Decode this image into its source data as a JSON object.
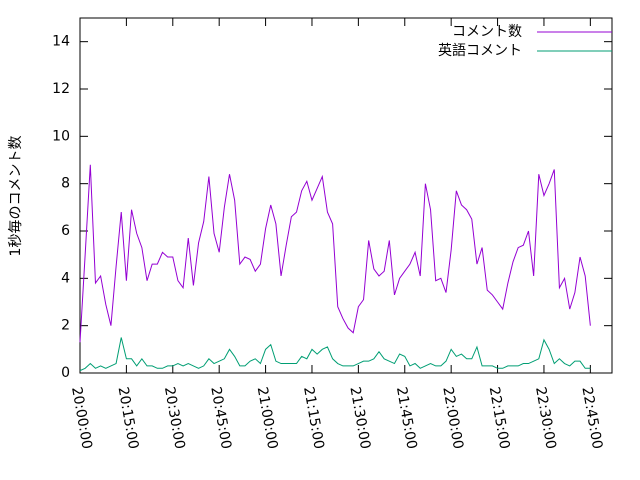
{
  "chart_data": {
    "type": "line",
    "y_label": "1秒毎のコメント数",
    "x": [
      "20:00:00",
      "20:01:40",
      "20:03:20",
      "20:05:00",
      "20:06:40",
      "20:08:20",
      "20:10:00",
      "20:11:40",
      "20:13:20",
      "20:15:00",
      "20:16:40",
      "20:18:20",
      "20:20:00",
      "20:21:40",
      "20:23:20",
      "20:25:00",
      "20:26:40",
      "20:28:20",
      "20:30:00",
      "20:31:40",
      "20:33:20",
      "20:35:00",
      "20:36:40",
      "20:38:20",
      "20:40:00",
      "20:41:40",
      "20:43:20",
      "20:45:00",
      "20:46:40",
      "20:48:20",
      "20:50:00",
      "20:51:40",
      "20:53:20",
      "20:55:00",
      "20:56:40",
      "20:58:20",
      "21:00:00",
      "21:01:40",
      "21:03:20",
      "21:05:00",
      "21:06:40",
      "21:08:20",
      "21:10:00",
      "21:11:40",
      "21:13:20",
      "21:15:00",
      "21:16:40",
      "21:18:20",
      "21:20:00",
      "21:21:40",
      "21:23:20",
      "21:25:00",
      "21:26:40",
      "21:28:20",
      "21:30:00",
      "21:31:40",
      "21:33:20",
      "21:35:00",
      "21:36:40",
      "21:38:20",
      "21:40:00",
      "21:41:40",
      "21:43:20",
      "21:45:00",
      "21:46:40",
      "21:48:20",
      "21:50:00",
      "21:51:40",
      "21:53:20",
      "21:55:00",
      "21:56:40",
      "21:58:20",
      "22:00:00",
      "22:01:40",
      "22:03:20",
      "22:05:00",
      "22:06:40",
      "22:08:20",
      "22:10:00",
      "22:11:40",
      "22:13:20",
      "22:15:00",
      "22:16:40",
      "22:18:20",
      "22:20:00",
      "22:21:40",
      "22:23:20",
      "22:25:00",
      "22:26:40",
      "22:28:20",
      "22:30:00",
      "22:31:40",
      "22:33:20",
      "22:35:00",
      "22:36:40",
      "22:38:20",
      "22:40:00",
      "22:41:40",
      "22:43:20",
      "22:45:00"
    ],
    "series": [
      {
        "name": "コメント数",
        "color": "#9400d3",
        "values": [
          1.3,
          5,
          8.8,
          3.8,
          4.1,
          2.9,
          2.0,
          4.5,
          6.8,
          3.9,
          6.9,
          5.9,
          5.3,
          3.9,
          4.6,
          4.6,
          5.1,
          4.9,
          4.9,
          3.9,
          3.6,
          5.7,
          3.7,
          5.5,
          6.4,
          8.3,
          5.9,
          5.1,
          7.0,
          8.4,
          7.3,
          4.6,
          4.9,
          4.8,
          4.3,
          4.6,
          6.1,
          7.1,
          6.3,
          4.1,
          5.4,
          6.6,
          6.8,
          7.7,
          8.1,
          7.3,
          7.8,
          8.3,
          6.8,
          6.3,
          2.8,
          2.3,
          1.9,
          1.7,
          2.8,
          3.1,
          5.6,
          4.4,
          4.1,
          4.3,
          5.6,
          3.3,
          4.0,
          4.3,
          4.6,
          5.1,
          4.1,
          8.0,
          6.9,
          3.9,
          4.0,
          3.4,
          5.2,
          7.7,
          7.1,
          6.9,
          6.5,
          4.6,
          5.3,
          3.5,
          3.3,
          3.0,
          2.7,
          3.8,
          4.7,
          5.3,
          5.4,
          6.0,
          4.1,
          8.4,
          7.5,
          8.0,
          8.6,
          3.6,
          4.0,
          2.7,
          3.4,
          4.9,
          4.1,
          2.0
        ]
      },
      {
        "name": "英語コメント",
        "color": "#009e73",
        "values": [
          0.1,
          0.2,
          0.4,
          0.2,
          0.3,
          0.2,
          0.3,
          0.4,
          1.5,
          0.6,
          0.6,
          0.3,
          0.6,
          0.3,
          0.3,
          0.2,
          0.2,
          0.3,
          0.3,
          0.4,
          0.3,
          0.4,
          0.3,
          0.2,
          0.3,
          0.6,
          0.4,
          0.5,
          0.6,
          1.0,
          0.7,
          0.3,
          0.3,
          0.5,
          0.6,
          0.4,
          1.0,
          1.2,
          0.5,
          0.4,
          0.4,
          0.4,
          0.4,
          0.7,
          0.6,
          1.0,
          0.8,
          1.0,
          1.1,
          0.6,
          0.4,
          0.3,
          0.3,
          0.3,
          0.4,
          0.5,
          0.5,
          0.6,
          0.9,
          0.6,
          0.5,
          0.4,
          0.8,
          0.7,
          0.3,
          0.4,
          0.2,
          0.3,
          0.4,
          0.3,
          0.3,
          0.5,
          1.0,
          0.7,
          0.8,
          0.6,
          0.6,
          1.1,
          0.3,
          0.3,
          0.3,
          0.2,
          0.2,
          0.3,
          0.3,
          0.3,
          0.4,
          0.4,
          0.5,
          0.6,
          1.4,
          1.0,
          0.4,
          0.6,
          0.4,
          0.3,
          0.5,
          0.5,
          0.2,
          0.2
        ]
      }
    ],
    "xlim": [
      "20:00:00",
      "22:52:00"
    ],
    "xticks": [
      "20:00:00",
      "20:15:00",
      "20:30:00",
      "20:45:00",
      "21:00:00",
      "21:15:00",
      "21:30:00",
      "21:45:00",
      "22:00:00",
      "22:15:00",
      "22:30:00",
      "22:45:00"
    ],
    "ylim": [
      0,
      15
    ],
    "yticks": [
      0,
      2,
      4,
      6,
      8,
      10,
      12,
      14
    ],
    "legend": "top-right"
  }
}
